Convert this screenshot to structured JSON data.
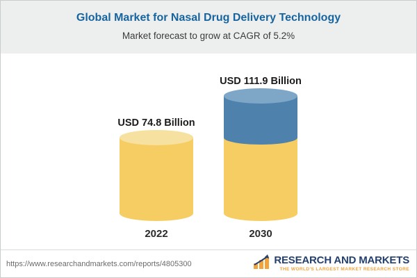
{
  "header": {
    "title": "Global Market for Nasal Drug Delivery Technology",
    "subtitle": "Market forecast to grow at CAGR of 5.2%"
  },
  "chart_data": {
    "type": "bar",
    "subtype": "stacked-cylinder-pictogram",
    "unit": "USD Billion",
    "categories": [
      "2022",
      "2030"
    ],
    "totals": [
      74.8,
      111.9
    ],
    "cagr_text": "5.2%",
    "bars": [
      {
        "category": "2022",
        "total": 74.8,
        "label": "USD 74.8 Billion",
        "segments": [
          {
            "name": "base",
            "value": 74.8,
            "color": "base"
          }
        ]
      },
      {
        "category": "2030",
        "total": 111.9,
        "label": "USD 111.9 Billion",
        "segments": [
          {
            "name": "base",
            "value": 74.8,
            "color": "base"
          },
          {
            "name": "growth",
            "value": 37.1,
            "color": "growth"
          }
        ]
      }
    ],
    "colors": {
      "base": {
        "side": "#f6cd62",
        "top": "#f7e1a0"
      },
      "growth": {
        "side": "#4f81ad",
        "top": "#7ea6c6"
      }
    },
    "title": "Global Market for Nasal Drug Delivery Technology",
    "legend": "none",
    "axes": "none"
  },
  "footer": {
    "url": "https://www.researchandmarkets.com/reports/4805300",
    "logo": {
      "text": "RESEARCH AND MARKETS",
      "tagline": "THE WORLD'S LARGEST MARKET RESEARCH STORE",
      "icon": "logo-mark-icon",
      "navy": "#24406e",
      "gold": "#f2a33a"
    }
  },
  "theme": {
    "title_color": "#17649f",
    "header_bg": "#edefee"
  }
}
